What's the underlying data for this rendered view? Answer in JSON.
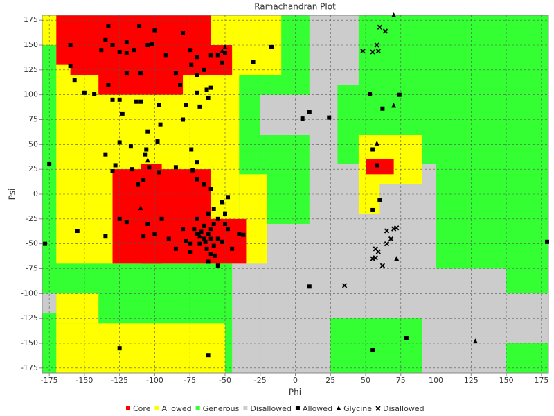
{
  "chart_data": {
    "type": "scatter",
    "title": "Ramachandran Plot",
    "x_label": "Phi",
    "y_label": "Psi",
    "xlim": [
      -180,
      180
    ],
    "ylim": [
      -180,
      180
    ],
    "xticks": [
      -175,
      -150,
      -125,
      -100,
      -75,
      -50,
      -25,
      0,
      25,
      50,
      75,
      100,
      125,
      150,
      175
    ],
    "yticks": [
      -175,
      -150,
      -125,
      -100,
      -75,
      -50,
      -25,
      0,
      25,
      50,
      75,
      100,
      125,
      150,
      175
    ],
    "grid": true,
    "legend": "bottom",
    "regions": [
      {
        "name": "Core",
        "color": "#ff0000"
      },
      {
        "name": "Allowed",
        "color": "#ffff00"
      },
      {
        "name": "Generous",
        "color": "#33ff33"
      },
      {
        "name": "Disallowed",
        "color": "#cccccc"
      }
    ],
    "series": [
      {
        "name": "Allowed",
        "color": "#000000",
        "marker": "square",
        "x": [
          -133,
          -111,
          -80,
          -135,
          -130,
          -160,
          -120,
          -125,
          -138,
          -105,
          -102,
          -115,
          -92,
          -75,
          -70,
          -60,
          -52,
          -65,
          -70,
          -85,
          -110,
          -120,
          -157,
          -133,
          -143,
          -150,
          -130,
          -110,
          -113,
          -125,
          -74,
          -63,
          -82,
          -70,
          -60,
          -78,
          -68,
          -97,
          -96,
          -80,
          -105,
          -123,
          -62,
          -55,
          -50,
          -160,
          -30,
          -17,
          -120,
          -100,
          -125,
          -106,
          -107,
          -117,
          -135,
          -98,
          -74,
          -70,
          -85,
          -104,
          -116,
          -130,
          -128,
          -97,
          -112,
          -108,
          -73,
          -70,
          -65,
          -60,
          -175,
          -155,
          -178,
          -135,
          -125,
          -120,
          -105,
          -100,
          -108,
          -90,
          -85,
          -95,
          -80,
          -78,
          -75,
          -68,
          -65,
          -62,
          -60,
          -58,
          -55,
          -52,
          -63,
          -60,
          -57,
          -65,
          -70,
          -50,
          -52,
          -40,
          -45,
          -55,
          -62,
          -75,
          -70,
          -62,
          -58,
          -55,
          -50,
          -48,
          -60,
          -58,
          -64,
          -72,
          -67,
          5,
          10,
          24,
          53,
          74,
          62,
          55,
          58,
          60,
          55,
          10,
          55,
          79,
          -125,
          -62,
          179,
          -37,
          -48
        ],
        "y": [
          169,
          169,
          162,
          155,
          150,
          150,
          153,
          143,
          145,
          150,
          151,
          145,
          140,
          145,
          138,
          140,
          132,
          125,
          120,
          122,
          122,
          122,
          115,
          110,
          101,
          102,
          95,
          93,
          93,
          95,
          130,
          105,
          110,
          102,
          107,
          90,
          88,
          90,
          70,
          75,
          63,
          81,
          97,
          140,
          142,
          129,
          133,
          148,
          142,
          165,
          52,
          45,
          40,
          48,
          40,
          53,
          45,
          32,
          27,
          27,
          25,
          23,
          29,
          22,
          10,
          14,
          24,
          15,
          10,
          5,
          30,
          -37,
          -50,
          -42,
          -25,
          -28,
          -30,
          -40,
          -42,
          -45,
          -55,
          -25,
          -35,
          -47,
          -58,
          -50,
          -45,
          -40,
          -35,
          -30,
          -45,
          -48,
          -55,
          -60,
          -62,
          -32,
          -40,
          -20,
          -8,
          -40,
          -55,
          -72,
          -68,
          -50,
          -25,
          -20,
          -15,
          -25,
          -30,
          -35,
          -45,
          -52,
          -48,
          -35,
          -38,
          76,
          83,
          77,
          101,
          100,
          86,
          45,
          29,
          -6,
          -16,
          -93,
          -157,
          -145,
          -155,
          -162,
          -48,
          -41,
          -3
        ]
      },
      {
        "name": "Glycine",
        "color": "#000000",
        "marker": "triangle",
        "x": [
          70,
          -50,
          -52,
          70,
          58,
          -105,
          -110,
          72,
          128,
          -68
        ],
        "y": [
          180,
          148,
          144,
          89,
          51,
          34,
          -14,
          -65,
          -148,
          -42
        ]
      },
      {
        "name": "Disallowed",
        "color": "#000000",
        "marker": "cross",
        "x": [
          60,
          64,
          48,
          55,
          58,
          59,
          65,
          70,
          68,
          65,
          57,
          59,
          55,
          62,
          35,
          72,
          57
        ],
        "y": [
          168,
          164,
          144,
          143,
          150,
          144,
          -37,
          -35,
          -45,
          -50,
          -55,
          -58,
          -65,
          -72,
          -92,
          -34,
          -64
        ]
      }
    ]
  }
}
